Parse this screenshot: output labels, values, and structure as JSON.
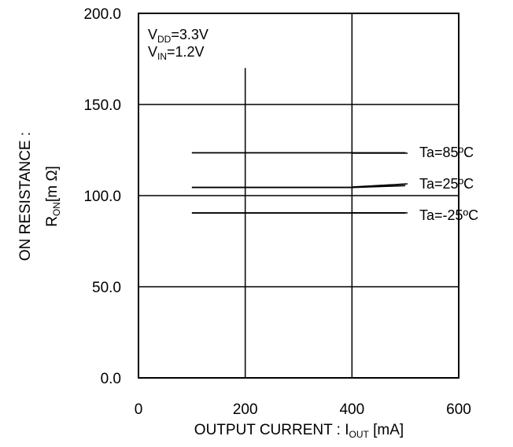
{
  "chart_data": {
    "type": "line",
    "xlabel_main": "OUTPUT CURRENT : I",
    "xlabel_sub": "OUT",
    "xlabel_unit": " [mA]",
    "ylabel_line1": "ON RESISTANCE :",
    "ylabel_line2_main": "R",
    "ylabel_line2_sub": "ON",
    "ylabel_line2_unit": "[m Ω]",
    "xlim": [
      0,
      600
    ],
    "ylim": [
      0,
      200
    ],
    "xticks": [
      0,
      200,
      400,
      600
    ],
    "xtick_labels": [
      "0",
      "200",
      "400",
      "600"
    ],
    "yticks": [
      0,
      50,
      100,
      150,
      200
    ],
    "ytick_labels": [
      "0.0",
      "50.0",
      "100.0",
      "150.0",
      "200.0"
    ],
    "grid": true,
    "conditions": [
      {
        "main": "V",
        "sub": "DD",
        "value": "=3.3V"
      },
      {
        "main": "V",
        "sub": "IN",
        "value": "=1.2V"
      }
    ],
    "series": [
      {
        "name": "Ta=85ºC",
        "x": [
          100,
          200,
          300,
          400,
          500
        ],
        "y": [
          123.5,
          123.5,
          123.5,
          123.5,
          123.5
        ]
      },
      {
        "name": "Ta=25ºC",
        "x": [
          100,
          200,
          300,
          400,
          500
        ],
        "y": [
          104.5,
          104.5,
          104.5,
          104.5,
          105.5
        ]
      },
      {
        "name": "Ta=-25ºC",
        "x": [
          100,
          200,
          300,
          400,
          500
        ],
        "y": [
          90.5,
          90.5,
          90.5,
          90.5,
          90.5
        ]
      }
    ],
    "colors": {
      "line": "#000000",
      "grid": "#000000",
      "background": "#ffffff"
    }
  }
}
